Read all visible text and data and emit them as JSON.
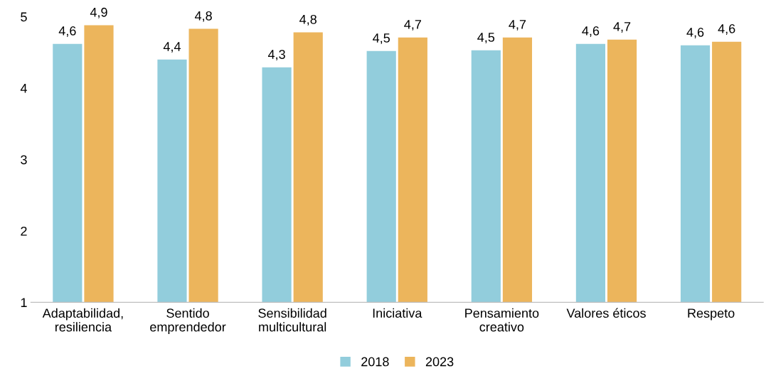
{
  "chart_data": {
    "type": "bar",
    "categories": [
      "Adaptabilidad,\nresiliencia",
      "Sentido\nemprendedor",
      "Sensibilidad\nmulticultural",
      "Iniciativa",
      "Pensamiento\ncreativo",
      "Valores éticos",
      "Respeto"
    ],
    "series": [
      {
        "name": "2018",
        "color": "#92cddc",
        "values": [
          4.62,
          4.4,
          4.29,
          4.52,
          4.53,
          4.62,
          4.6
        ],
        "value_labels": [
          "4,6",
          "4,4",
          "4,3",
          "4,5",
          "4,5",
          "4,6",
          "4,6"
        ]
      },
      {
        "name": "2023",
        "color": "#ecb55c",
        "values": [
          4.88,
          4.83,
          4.78,
          4.71,
          4.71,
          4.68,
          4.65
        ],
        "value_labels": [
          "4,9",
          "4,8",
          "4,8",
          "4,7",
          "4,7",
          "4,7",
          "4,6"
        ]
      }
    ],
    "ylim": [
      1,
      5
    ],
    "yticks": [
      1,
      2,
      3,
      4,
      5
    ],
    "grid": false,
    "legend": "bottom"
  }
}
